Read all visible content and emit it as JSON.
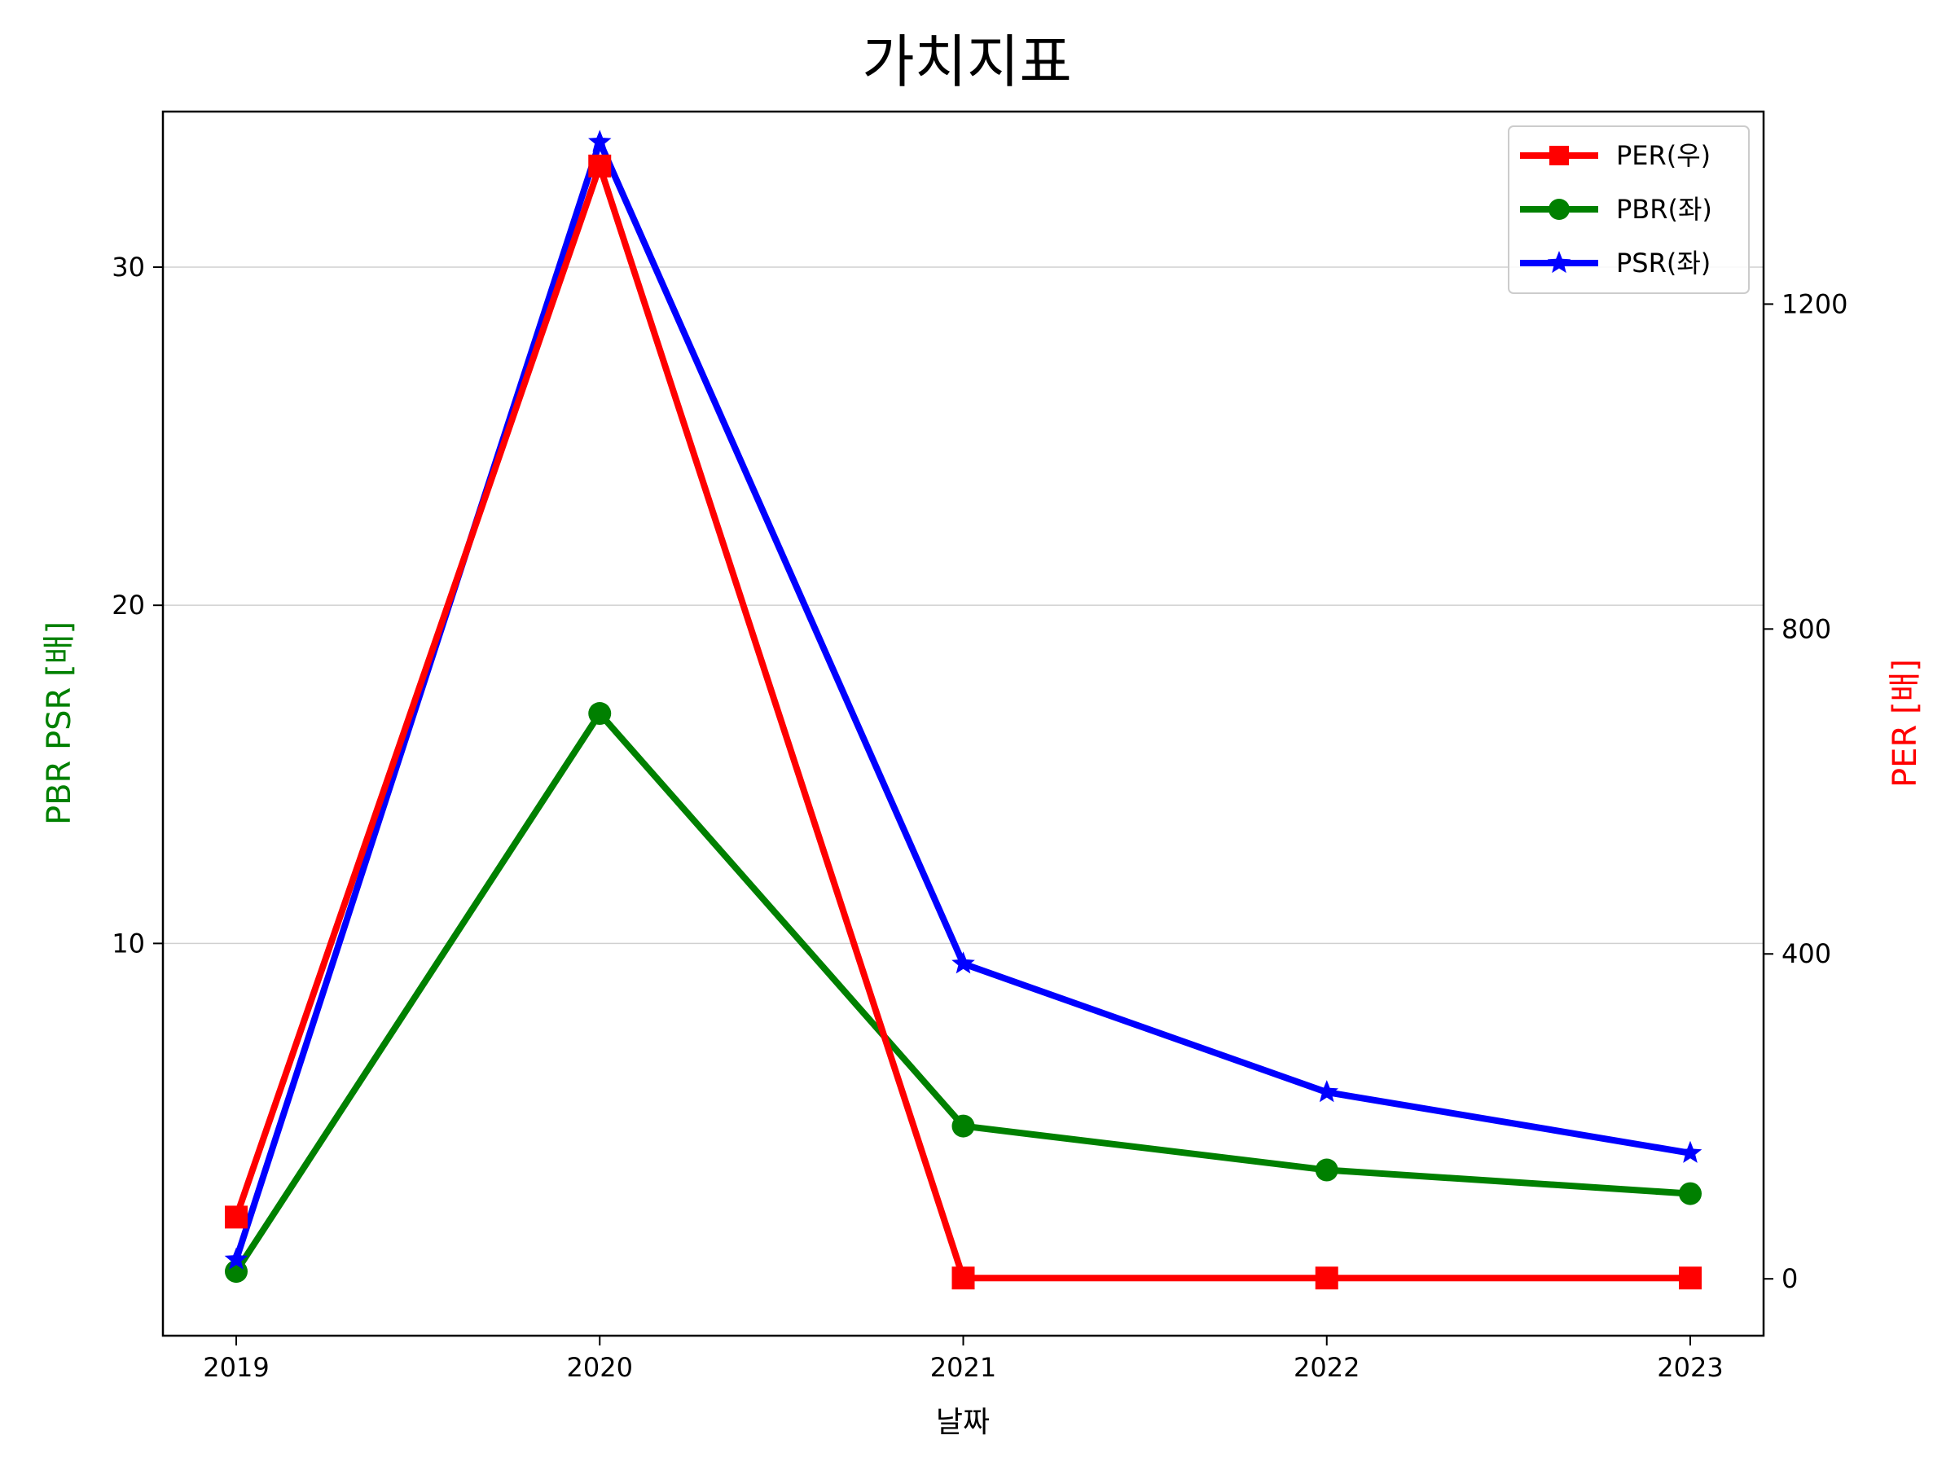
{
  "chart_data": {
    "type": "line",
    "title": "가치지표",
    "xlabel": "날짜",
    "ylabel_left": "PBR PSR [배]",
    "ylabel_right": "PER [배]",
    "categories": [
      "2019",
      "2020",
      "2021",
      "2022",
      "2023"
    ],
    "ylim_left": [
      -1.6,
      34.6
    ],
    "ylim_right": [
      -70,
      1437
    ],
    "yticks_left": [
      10,
      20,
      30
    ],
    "yticks_right": [
      0,
      400,
      800,
      1200
    ],
    "grid": "horizontal, left axis",
    "legend_position": "top-right",
    "series": [
      {
        "name": "PER(우)",
        "axis": "right",
        "marker": "square",
        "color": "#ff0000",
        "values": [
          76,
          1370,
          1,
          1,
          1
        ]
      },
      {
        "name": "PBR(좌)",
        "axis": "left",
        "marker": "circle",
        "color": "#008000",
        "values": [
          0.3,
          16.8,
          4.6,
          3.3,
          2.6
        ]
      },
      {
        "name": "PSR(좌)",
        "axis": "left",
        "marker": "star",
        "color": "#0000ff",
        "values": [
          0.65,
          33.7,
          9.4,
          5.6,
          3.8
        ]
      }
    ]
  }
}
